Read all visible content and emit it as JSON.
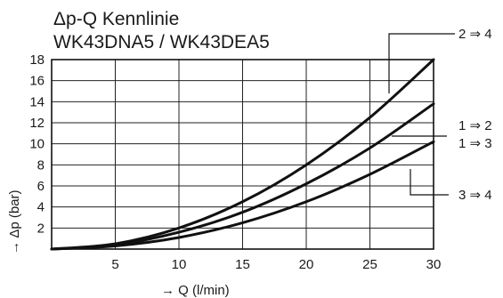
{
  "chart_data": {
    "type": "line",
    "title": "Δp-Q Kennlinie",
    "subtitle": "WK43DNA5 / WK43DEA5",
    "xlabel": "→ Q (l/min)",
    "ylabel": "→ Δp (bar)",
    "xlim": [
      0,
      30
    ],
    "ylim": [
      0,
      18
    ],
    "x_ticks": [
      5,
      10,
      15,
      20,
      25,
      30
    ],
    "y_ticks": [
      2,
      4,
      6,
      8,
      10,
      12,
      14,
      16,
      18
    ],
    "grid": true,
    "x": [
      0,
      5,
      10,
      15,
      20,
      25,
      30
    ],
    "series": [
      {
        "name": "2 ⇒ 4",
        "values": [
          0,
          0.5,
          2.0,
          4.5,
          8.0,
          12.5,
          18.0
        ]
      },
      {
        "name": "1 ⇒ 2 / 1 ⇒ 3",
        "values": [
          0,
          0.4,
          1.6,
          3.5,
          6.2,
          9.6,
          13.8
        ]
      },
      {
        "name": "3 ⇒ 4",
        "values": [
          0,
          0.3,
          1.1,
          2.5,
          4.5,
          7.1,
          10.2
        ]
      }
    ],
    "annotations": [
      {
        "id": "a24",
        "series": 0,
        "lines": [
          "2 ⇒ 4"
        ]
      },
      {
        "id": "a12",
        "series": 1,
        "lines": [
          "1 ⇒ 2",
          "1 ⇒ 3"
        ]
      },
      {
        "id": "a34",
        "series": 2,
        "lines": [
          "3 ⇒ 4"
        ]
      }
    ]
  }
}
